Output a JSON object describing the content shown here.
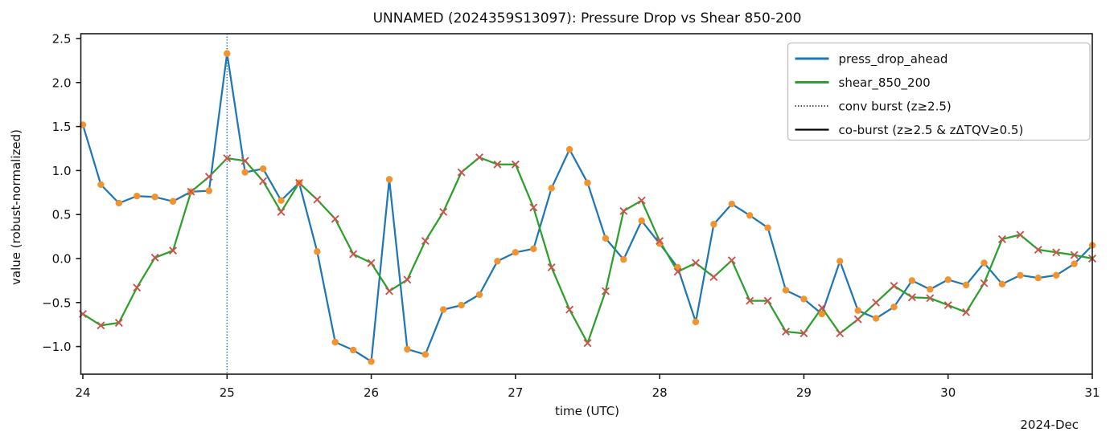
{
  "chart_data": {
    "type": "line",
    "title": "UNNAMED (2024359S13097): Pressure Drop vs Shear 850-200",
    "xlabel": "time (UTC)",
    "ylabel": "value (robust-normalized)",
    "x_offset_label": "2024-Dec",
    "xlim": [
      24,
      31
    ],
    "ylim": [
      -1.31,
      2.55
    ],
    "grid": false,
    "x_ticks": [
      {
        "label": "24",
        "value": 24
      },
      {
        "label": "25",
        "value": 25
      },
      {
        "label": "26",
        "value": 26
      },
      {
        "label": "27",
        "value": 27
      },
      {
        "label": "28",
        "value": 28
      },
      {
        "label": "29",
        "value": 29
      },
      {
        "label": "30",
        "value": 30
      },
      {
        "label": "31",
        "value": 31
      }
    ],
    "y_ticks": [
      {
        "label": "2.5",
        "value": 2.5
      },
      {
        "label": "2.0",
        "value": 2.0
      },
      {
        "label": "1.5",
        "value": 1.5
      },
      {
        "label": "1.0",
        "value": 1.0
      },
      {
        "label": "0.5",
        "value": 0.5
      },
      {
        "label": "0.0",
        "value": 0.0
      },
      {
        "label": "−0.5",
        "value": -0.5
      },
      {
        "label": "−1.0",
        "value": -1.0
      }
    ],
    "x": [
      24.0,
      24.125,
      24.25,
      24.375,
      24.5,
      24.625,
      24.75,
      24.875,
      25.0,
      25.125,
      25.25,
      25.375,
      25.5,
      25.625,
      25.75,
      25.875,
      26.0,
      26.125,
      26.25,
      26.375,
      26.5,
      26.625,
      26.75,
      26.875,
      27.0,
      27.125,
      27.25,
      27.375,
      27.5,
      27.625,
      27.75,
      27.875,
      28.0,
      28.125,
      28.25,
      28.375,
      28.5,
      28.625,
      28.75,
      28.875,
      29.0,
      29.125,
      29.25,
      29.375,
      29.5,
      29.625,
      29.75,
      29.875,
      30.0,
      30.125,
      30.25,
      30.375,
      30.5,
      30.625,
      30.75,
      30.875,
      31.0
    ],
    "series": [
      {
        "name": "press_drop_ahead",
        "line_color": "#1f77b4",
        "marker": "circle",
        "marker_color": "#f1942f",
        "values": [
          1.52,
          0.84,
          0.63,
          0.71,
          0.7,
          0.65,
          0.76,
          0.77,
          2.33,
          0.98,
          1.02,
          0.66,
          0.86,
          0.08,
          -0.95,
          -1.04,
          -1.17,
          0.9,
          -1.03,
          -1.09,
          -0.58,
          -0.53,
          -0.41,
          -0.03,
          0.07,
          0.11,
          0.8,
          1.24,
          0.86,
          0.23,
          -0.01,
          0.43,
          0.17,
          -0.1,
          -0.72,
          0.39,
          0.62,
          0.49,
          0.35,
          -0.36,
          -0.46,
          -0.63,
          -0.03,
          -0.59,
          -0.68,
          -0.55,
          -0.25,
          -0.35,
          -0.24,
          -0.3,
          -0.05,
          -0.29,
          -0.19,
          -0.22,
          -0.19,
          -0.06,
          0.15
        ]
      },
      {
        "name": "shear_850_200",
        "line_color": "#2ca02c",
        "marker": "x",
        "marker_color": "#c9544d",
        "values": [
          -0.63,
          -0.76,
          -0.73,
          -0.33,
          0.01,
          0.09,
          0.76,
          0.93,
          1.14,
          1.11,
          0.88,
          0.53,
          0.86,
          0.67,
          0.45,
          0.05,
          -0.05,
          -0.37,
          -0.24,
          0.2,
          0.53,
          0.98,
          1.15,
          1.07,
          1.07,
          0.58,
          -0.1,
          -0.58,
          -0.96,
          -0.37,
          0.54,
          0.66,
          0.2,
          -0.15,
          -0.05,
          -0.21,
          -0.02,
          -0.48,
          -0.48,
          -0.83,
          -0.85,
          -0.56,
          -0.85,
          -0.69,
          -0.5,
          -0.31,
          -0.44,
          -0.45,
          -0.53,
          -0.61,
          -0.28,
          0.22,
          0.27,
          0.1,
          0.07,
          0.04,
          0.0
        ]
      }
    ],
    "events": [
      {
        "kind": "conv burst",
        "x": 25.0,
        "style": "dotted",
        "color": "#1f77b4"
      }
    ],
    "legend": {
      "position": "upper right",
      "entries": [
        {
          "label": "press_drop_ahead",
          "line": "solid",
          "color": "#1f77b4",
          "width": 3
        },
        {
          "label": "shear_850_200",
          "line": "solid",
          "color": "#2ca02c",
          "width": 3
        },
        {
          "label": "conv burst (z≥2.5)",
          "line": "dotted",
          "color": "#000000",
          "width": 1.4
        },
        {
          "label": "co-burst (z≥2.5 & zΔTQV≥0.5)",
          "line": "solid",
          "color": "#000000",
          "width": 2.2
        }
      ]
    }
  }
}
